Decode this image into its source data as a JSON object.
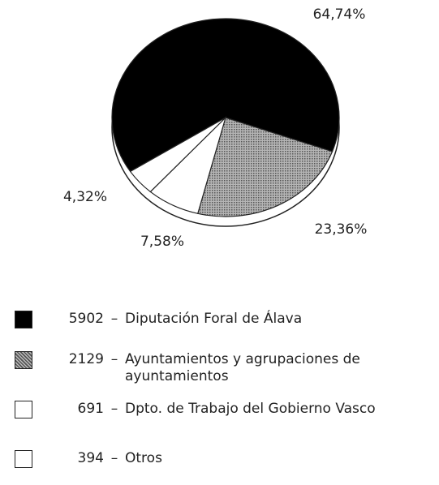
{
  "chart_data": {
    "type": "pie",
    "values": [
      64.74,
      23.36,
      7.58,
      4.32
    ],
    "value_labels": [
      "64,74%",
      "23,36%",
      "7,58%",
      "4,32%"
    ],
    "counts": [
      5902,
      2129,
      691,
      394
    ],
    "separator": "–",
    "categories": [
      "Diputación Foral de Álava",
      "Ayuntamientos y agrupaciones de ayuntamientos",
      "Dpto. de Trabajo del Gobierno Vasco",
      "Otros"
    ],
    "colors": [
      "#000000",
      "pattern-gray",
      "#ffffff",
      "#ffffff"
    ]
  }
}
